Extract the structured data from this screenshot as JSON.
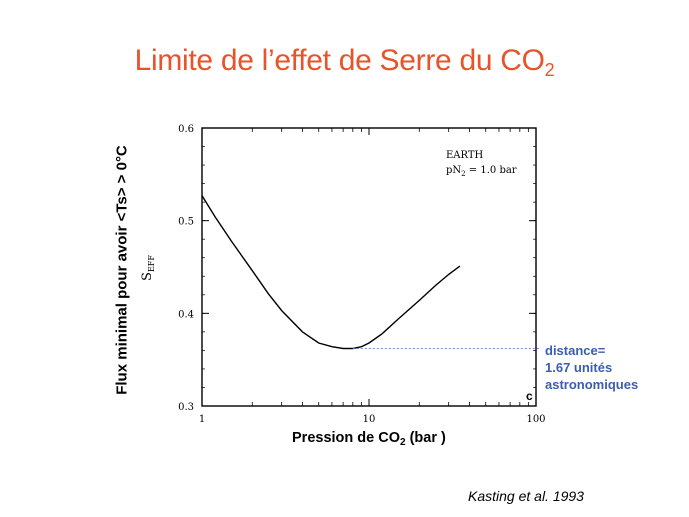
{
  "title_main": "Limite de l’effet de Serre du CO",
  "title_sub": "2",
  "y_outer_label": "Flux minimal pour avoir <Ts> > 0°C",
  "x_outer_label_main": "Pression de CO",
  "x_outer_label_sub": "2",
  "x_outer_label_tail": " (bar )",
  "annotation": [
    "distance=",
    "1.67 unités",
    "astronomiques"
  ],
  "citation": "Kasting et al. 1993",
  "colors": {
    "title": "#e8542a",
    "annotation": "#3a5eb0",
    "curve": "#000000"
  },
  "chart_data": {
    "type": "line",
    "x_scale": "log",
    "xlim": [
      1,
      100
    ],
    "ylim": [
      0.3,
      0.6
    ],
    "x_ticks": [
      1,
      10,
      100
    ],
    "y_ticks": [
      0.3,
      0.4,
      0.5,
      0.6
    ],
    "x_tick_labels": [
      "1",
      "10",
      "100"
    ],
    "y_tick_labels": [
      "0.3",
      "0.4",
      "0.5",
      "0.6"
    ],
    "ylabel_main": "S",
    "ylabel_sub": "EFF",
    "legend_line1": "EARTH",
    "legend_line2_a": "pN",
    "legend_line2_sub": "2",
    "legend_line2_b": " = 1.0 bar",
    "panel_label": "c",
    "series": [
      {
        "x": [
          1.0,
          1.2,
          1.5,
          2.0,
          2.5,
          3.0,
          4.0,
          5.0,
          6.0,
          7.0,
          8.0,
          9.0,
          10.0,
          12.0,
          15.0,
          20.0,
          25.0,
          30.0,
          35.0
        ],
        "y": [
          0.527,
          0.504,
          0.478,
          0.446,
          0.421,
          0.403,
          0.38,
          0.368,
          0.364,
          0.362,
          0.362,
          0.364,
          0.368,
          0.378,
          0.394,
          0.414,
          0.43,
          0.442,
          0.451
        ]
      }
    ],
    "reference_line": {
      "x_start": 8.0,
      "y": 0.362
    }
  }
}
